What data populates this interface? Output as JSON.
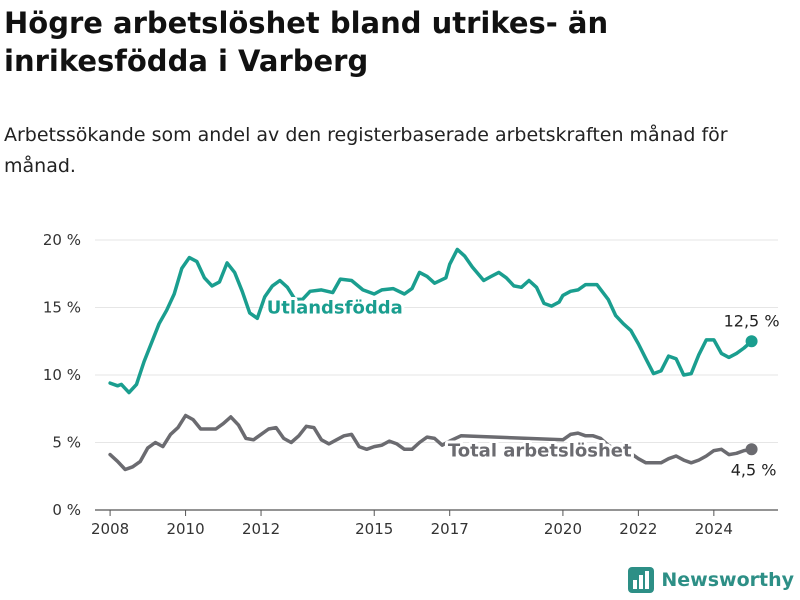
{
  "title": "Högre arbetslöshet bland utrikes- än inrikesfödda i Varberg",
  "subtitle": "Arbetssökande som andel av den registerbaserade arbetskraften månad för månad.",
  "brand": {
    "name": "Newsworthy",
    "icon": "newsworthy-logo-icon",
    "color": "#2d9e8f"
  },
  "chart_data": {
    "type": "line",
    "title": "Högre arbetslöshet bland utrikes- än inrikesfödda i Varberg",
    "subtitle": "Arbetssökande som andel av den registerbaserade arbetskraften månad för månad.",
    "xlabel": "",
    "ylabel": "",
    "ylim": [
      0,
      20
    ],
    "xlim": [
      2007.6,
      2025.7
    ],
    "y_ticks": [
      0,
      5,
      10,
      15,
      20
    ],
    "y_tick_labels": [
      "0 %",
      "5 %",
      "10 %",
      "15 %",
      "20 %"
    ],
    "x_ticks": [
      2008,
      2010,
      2012,
      2015,
      2017,
      2020,
      2022,
      2024
    ],
    "x_tick_labels": [
      "2008",
      "2010",
      "2012",
      "2015",
      "2017",
      "2020",
      "2022",
      "2024"
    ],
    "grid": "horizontal",
    "legend": "direct labels",
    "series": [
      {
        "name": "Utlandsfödda",
        "color": "#1a9e8f",
        "end_label": "12,5 %",
        "points": [
          [
            2008.0,
            9.4
          ],
          [
            2008.2,
            9.2
          ],
          [
            2008.3,
            9.3
          ],
          [
            2008.5,
            8.7
          ],
          [
            2008.7,
            9.3
          ],
          [
            2008.9,
            11.0
          ],
          [
            2009.1,
            12.4
          ],
          [
            2009.3,
            13.8
          ],
          [
            2009.5,
            14.8
          ],
          [
            2009.7,
            16.0
          ],
          [
            2009.9,
            17.9
          ],
          [
            2010.1,
            18.7
          ],
          [
            2010.3,
            18.4
          ],
          [
            2010.5,
            17.2
          ],
          [
            2010.7,
            16.6
          ],
          [
            2010.9,
            16.9
          ],
          [
            2011.1,
            18.3
          ],
          [
            2011.3,
            17.6
          ],
          [
            2011.5,
            16.2
          ],
          [
            2011.7,
            14.6
          ],
          [
            2011.9,
            14.2
          ],
          [
            2012.1,
            15.8
          ],
          [
            2012.3,
            16.6
          ],
          [
            2012.5,
            17.0
          ],
          [
            2012.7,
            16.5
          ],
          [
            2012.9,
            15.6
          ],
          [
            2013.1,
            15.6
          ],
          [
            2013.3,
            16.2
          ],
          [
            2013.6,
            16.3
          ],
          [
            2013.9,
            16.1
          ],
          [
            2014.1,
            17.1
          ],
          [
            2014.4,
            17.0
          ],
          [
            2014.7,
            16.3
          ],
          [
            2015.0,
            16.0
          ],
          [
            2015.2,
            16.3
          ],
          [
            2015.5,
            16.4
          ],
          [
            2015.8,
            16.0
          ],
          [
            2016.0,
            16.4
          ],
          [
            2016.2,
            17.6
          ],
          [
            2016.4,
            17.3
          ],
          [
            2016.6,
            16.8
          ],
          [
            2016.9,
            17.2
          ],
          [
            2017.0,
            18.2
          ],
          [
            2017.2,
            19.3
          ],
          [
            2017.4,
            18.8
          ],
          [
            2017.6,
            18.0
          ],
          [
            2017.9,
            17.0
          ],
          [
            2018.1,
            17.3
          ],
          [
            2018.3,
            17.6
          ],
          [
            2018.5,
            17.2
          ],
          [
            2018.7,
            16.6
          ],
          [
            2018.9,
            16.5
          ],
          [
            2019.1,
            17.0
          ],
          [
            2019.3,
            16.5
          ],
          [
            2019.5,
            15.3
          ],
          [
            2019.7,
            15.1
          ],
          [
            2019.9,
            15.4
          ],
          [
            2020.0,
            15.9
          ],
          [
            2020.2,
            16.2
          ],
          [
            2020.4,
            16.3
          ],
          [
            2020.6,
            16.7
          ],
          [
            2020.9,
            16.7
          ],
          [
            2021.2,
            15.6
          ],
          [
            2021.4,
            14.4
          ],
          [
            2021.6,
            13.8
          ],
          [
            2021.8,
            13.3
          ],
          [
            2022.0,
            12.3
          ],
          [
            2022.2,
            11.2
          ],
          [
            2022.4,
            10.1
          ],
          [
            2022.6,
            10.3
          ],
          [
            2022.8,
            11.4
          ],
          [
            2023.0,
            11.2
          ],
          [
            2023.2,
            10.0
          ],
          [
            2023.4,
            10.1
          ],
          [
            2023.6,
            11.5
          ],
          [
            2023.8,
            12.6
          ],
          [
            2024.0,
            12.6
          ],
          [
            2024.2,
            11.6
          ],
          [
            2024.4,
            11.3
          ],
          [
            2024.6,
            11.6
          ],
          [
            2024.8,
            12.0
          ],
          [
            2025.0,
            12.5
          ]
        ]
      },
      {
        "name": "Total arbetslöshet",
        "color": "#6b6b70",
        "end_label": "4,5 %",
        "points": [
          [
            2008.0,
            4.1
          ],
          [
            2008.2,
            3.6
          ],
          [
            2008.4,
            3.0
          ],
          [
            2008.6,
            3.2
          ],
          [
            2008.8,
            3.6
          ],
          [
            2009.0,
            4.6
          ],
          [
            2009.2,
            5.0
          ],
          [
            2009.4,
            4.7
          ],
          [
            2009.6,
            5.6
          ],
          [
            2009.8,
            6.1
          ],
          [
            2010.0,
            7.0
          ],
          [
            2010.2,
            6.7
          ],
          [
            2010.4,
            6.0
          ],
          [
            2010.6,
            6.0
          ],
          [
            2010.8,
            6.0
          ],
          [
            2011.0,
            6.4
          ],
          [
            2011.2,
            6.9
          ],
          [
            2011.4,
            6.3
          ],
          [
            2011.6,
            5.3
          ],
          [
            2011.8,
            5.2
          ],
          [
            2012.0,
            5.6
          ],
          [
            2012.2,
            6.0
          ],
          [
            2012.4,
            6.1
          ],
          [
            2012.6,
            5.3
          ],
          [
            2012.8,
            5.0
          ],
          [
            2013.0,
            5.5
          ],
          [
            2013.2,
            6.2
          ],
          [
            2013.4,
            6.1
          ],
          [
            2013.6,
            5.2
          ],
          [
            2013.8,
            4.9
          ],
          [
            2014.0,
            5.2
          ],
          [
            2014.2,
            5.5
          ],
          [
            2014.4,
            5.6
          ],
          [
            2014.6,
            4.7
          ],
          [
            2014.8,
            4.5
          ],
          [
            2015.0,
            4.7
          ],
          [
            2015.2,
            4.8
          ],
          [
            2015.4,
            5.1
          ],
          [
            2015.6,
            4.9
          ],
          [
            2015.8,
            4.5
          ],
          [
            2016.0,
            4.5
          ],
          [
            2016.2,
            5.0
          ],
          [
            2016.4,
            5.4
          ],
          [
            2016.6,
            5.3
          ],
          [
            2016.8,
            4.8
          ],
          [
            2017.0,
            5.1
          ],
          [
            2017.3,
            5.5
          ],
          [
            2020.0,
            5.2
          ],
          [
            2020.2,
            5.6
          ],
          [
            2020.4,
            5.7
          ],
          [
            2020.6,
            5.5
          ],
          [
            2020.8,
            5.5
          ],
          [
            2021.0,
            5.3
          ],
          [
            2021.2,
            4.8
          ],
          [
            2021.4,
            4.5
          ],
          [
            2021.6,
            4.3
          ],
          [
            2021.8,
            4.2
          ],
          [
            2022.0,
            3.8
          ],
          [
            2022.2,
            3.5
          ],
          [
            2022.4,
            3.5
          ],
          [
            2022.6,
            3.5
          ],
          [
            2022.8,
            3.8
          ],
          [
            2023.0,
            4.0
          ],
          [
            2023.2,
            3.7
          ],
          [
            2023.4,
            3.5
          ],
          [
            2023.6,
            3.7
          ],
          [
            2023.8,
            4.0
          ],
          [
            2024.0,
            4.4
          ],
          [
            2024.2,
            4.5
          ],
          [
            2024.4,
            4.1
          ],
          [
            2024.6,
            4.2
          ],
          [
            2024.8,
            4.4
          ],
          [
            2025.0,
            4.5
          ]
        ]
      }
    ]
  }
}
